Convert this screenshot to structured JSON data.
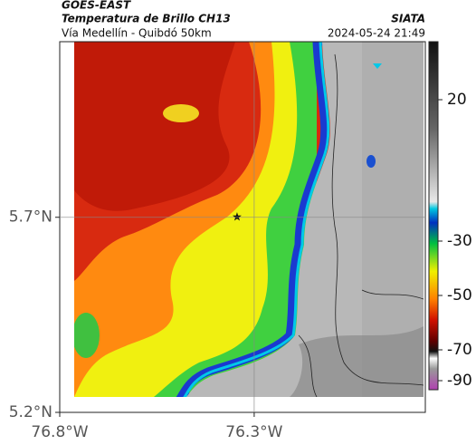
{
  "header": {
    "title": "GOES-EAST",
    "subtitle": "Temperatura de Brillo CH13",
    "region": "Vía Medellín - Quibdó 50km",
    "source": "SIATA",
    "datetime": "2024-05-24 21:49"
  },
  "map": {
    "xlim": [
      -76.8,
      -75.86
    ],
    "ylim": [
      5.2,
      6.15
    ],
    "xticks": [
      {
        "value": -76.8,
        "label": "76.8°W"
      },
      {
        "value": -76.3,
        "label": "76.3°W"
      }
    ],
    "yticks": [
      {
        "value": 5.7,
        "label": "5.7°N"
      },
      {
        "value": 5.2,
        "label": "5.2°N"
      }
    ],
    "grid": true
  },
  "colorbar": {
    "ticks": [
      20,
      -30,
      -50,
      -70,
      -90
    ]
  }
}
